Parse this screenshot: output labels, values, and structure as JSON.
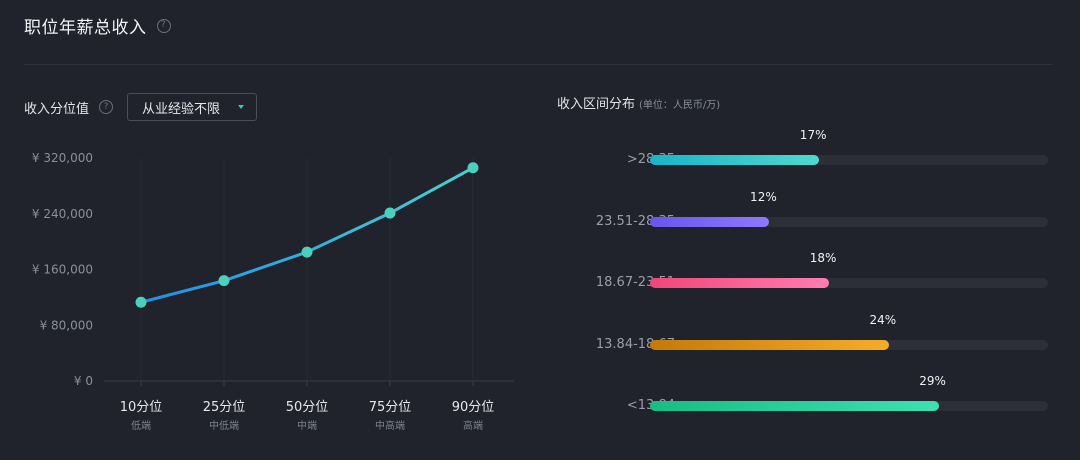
{
  "page_title": "职位年薪总收入",
  "left_section": {
    "label": "收入分位值",
    "select_value": "从业经验不限"
  },
  "right_section": {
    "title": "收入区间分布",
    "unit_note": "(单位：人民币/万)"
  },
  "colors": {
    "line_start": "#1e8fe8",
    "line_end": "#4bcfcf",
    "point": "#4dcfbd"
  },
  "chart_data": [
    {
      "type": "line",
      "title": "",
      "xlabel": "",
      "ylabel": "",
      "categories": [
        "10分位",
        "25分位",
        "50分位",
        "75分位",
        "90分位"
      ],
      "category_sublabels": [
        "低端",
        "中低端",
        "中端",
        "中高端",
        "高端"
      ],
      "series": [
        {
          "values": [
            113000,
            144000,
            185000,
            241000,
            306000
          ]
        }
      ],
      "y_ticks": [
        0,
        80000,
        160000,
        240000,
        320000
      ],
      "y_tick_labels": [
        "¥ 0",
        "¥ 80,000",
        "¥ 160,000",
        "¥ 240,000",
        "¥ 320,000"
      ],
      "ylim": [
        0,
        320000
      ],
      "grid": false
    },
    {
      "type": "bar",
      "orientation": "horizontal",
      "title": "收入区间分布",
      "categories": [
        ">28.35",
        "23.51-28.35",
        "18.67-23.51",
        "13.84-18.67",
        "<13.84"
      ],
      "values": [
        17,
        12,
        18,
        24,
        29
      ],
      "value_labels": [
        "17%",
        "12%",
        "18%",
        "24%",
        "29%"
      ],
      "xlim": [
        0,
        40
      ],
      "bar_gradients": [
        [
          "#1ab4c8",
          "#4dd9cd"
        ],
        [
          "#6a55ee",
          "#8f78ff"
        ],
        [
          "#f0467a",
          "#ff7eb0"
        ],
        [
          "#c47a08",
          "#f5ad28"
        ],
        [
          "#18bd84",
          "#3de0b0"
        ]
      ]
    }
  ]
}
